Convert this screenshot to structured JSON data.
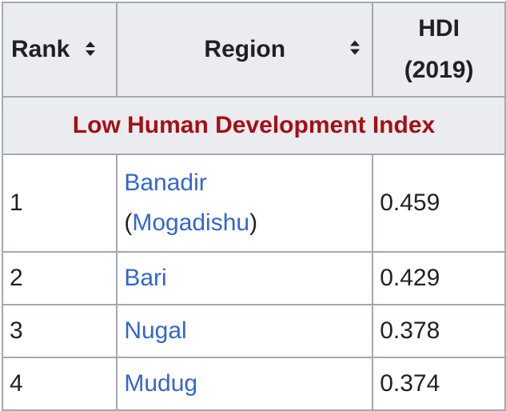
{
  "header": {
    "rank": "Rank",
    "region": "Region",
    "hdi_line1": "HDI",
    "hdi_line2": "(2019)",
    "sort_glyph": "⇕"
  },
  "group_label": "Low Human Development Index",
  "rows": [
    {
      "rank": "1",
      "region": "Banadir",
      "paren_open": "(",
      "city": "Mogadishu",
      "paren_close": ")",
      "hdi": "0.459"
    },
    {
      "rank": "2",
      "region": "Bari",
      "hdi": "0.429"
    },
    {
      "rank": "3",
      "region": "Nugal",
      "hdi": "0.378"
    },
    {
      "rank": "4",
      "region": "Mudug",
      "hdi": "0.374"
    }
  ],
  "colors": {
    "link": "#3366cc",
    "group_label": "#a50f15",
    "header_bg": "#eaecf0",
    "border": "#a2a9b1"
  }
}
